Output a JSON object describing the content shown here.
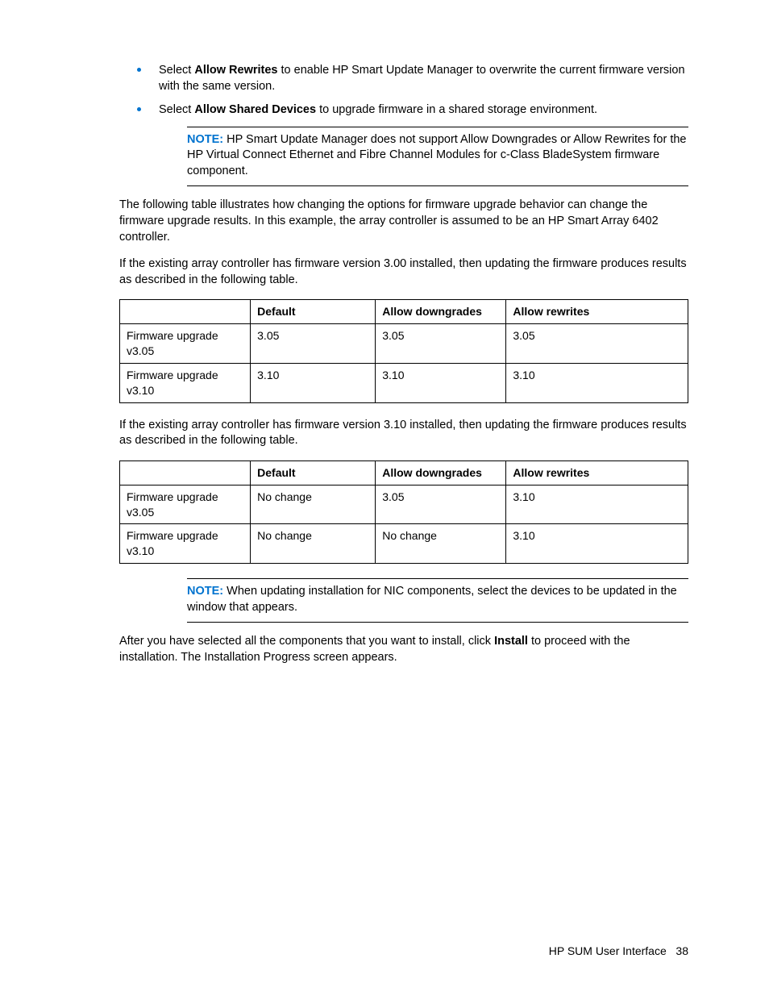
{
  "bullets": [
    {
      "pre": "Select ",
      "bold": "Allow Rewrites",
      "post": " to enable HP Smart Update Manager to overwrite the current firmware version with the same version."
    },
    {
      "pre": "Select ",
      "bold": "Allow Shared Devices",
      "post": " to upgrade firmware in a shared storage environment."
    }
  ],
  "note1": {
    "label": "NOTE:",
    "text": "  HP Smart Update Manager does not support Allow Downgrades or Allow Rewrites for the HP Virtual Connect Ethernet and Fibre Channel Modules for c-Class BladeSystem firmware component."
  },
  "para1": "The following table illustrates how changing the options for firmware upgrade behavior can change the firmware upgrade results. In this example, the array controller is assumed to be an HP Smart Array 6402 controller.",
  "para2": "If the existing array controller has firmware version 3.00 installed, then updating the firmware produces results as described in the following table.",
  "table1": {
    "headers": [
      "",
      "Default",
      "Allow downgrades",
      "Allow rewrites"
    ],
    "rows": [
      [
        "Firmware upgrade v3.05",
        "3.05",
        "3.05",
        "3.05"
      ],
      [
        "Firmware upgrade v3.10",
        "3.10",
        "3.10",
        "3.10"
      ]
    ]
  },
  "para3": "If the existing array controller has firmware version 3.10 installed, then updating the firmware produces results as described in the following table.",
  "table2": {
    "headers": [
      "",
      "Default",
      "Allow downgrades",
      "Allow rewrites"
    ],
    "rows": [
      [
        "Firmware upgrade v3.05",
        "No change",
        "3.05",
        "3.10"
      ],
      [
        "Firmware upgrade v3.10",
        "No change",
        "No change",
        "3.10"
      ]
    ]
  },
  "note2": {
    "label": "NOTE:",
    "text": "  When updating installation for NIC components, select the devices to be updated in the window that appears."
  },
  "para4": {
    "pre": "After you have selected all the components that you want to install, click ",
    "bold": "Install",
    "post": " to proceed with the installation. The Installation Progress screen appears."
  },
  "footer": {
    "title": "HP SUM User Interface",
    "page": "38"
  },
  "colors": {
    "bullet": "#0073cf",
    "note_label": "#0073cf",
    "text": "#000000",
    "border": "#000000",
    "background": "#ffffff"
  }
}
